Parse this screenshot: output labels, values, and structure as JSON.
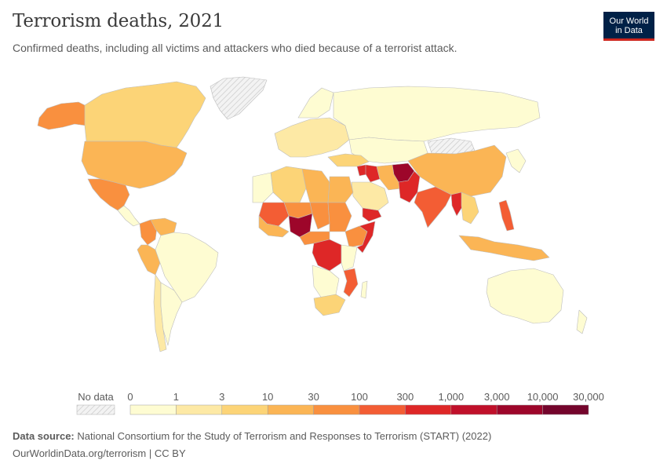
{
  "header": {
    "title": "Terrorism deaths, 2021",
    "subtitle": "Confirmed deaths, including all victims and attackers who died because of a terrorist attack."
  },
  "logo": {
    "line1": "Our World",
    "line2": "in Data",
    "bg": "#002147",
    "accent": "#ce261e"
  },
  "legend": {
    "no_data_label": "No data",
    "bins": [
      "0",
      "1",
      "3",
      "10",
      "30",
      "100",
      "300",
      "1,000",
      "3,000",
      "10,000",
      "30,000"
    ],
    "colors": [
      "#fefcd2",
      "#fde9a5",
      "#fcd477",
      "#fbb555",
      "#f9903f",
      "#f35d34",
      "#de2727",
      "#c0102a",
      "#9d062a",
      "#74052c"
    ]
  },
  "footer": {
    "source_label": "Data source:",
    "source_text": "National Consortium for the Study of Terrorism and Responses to Terrorism (START) (2022)",
    "url": "OurWorldinData.org/terrorism",
    "license": "| CC BY"
  },
  "regions": [
    {
      "name": "Canada",
      "level": 2
    },
    {
      "name": "Alaska",
      "level": 4
    },
    {
      "name": "United States",
      "level": 3
    },
    {
      "name": "Mexico",
      "level": 4
    },
    {
      "name": "Colombia",
      "level": 4
    },
    {
      "name": "Venezuela",
      "level": 3
    },
    {
      "name": "Peru",
      "level": 3
    },
    {
      "name": "Brazil",
      "level": 0
    },
    {
      "name": "Chile",
      "level": 1
    },
    {
      "name": "Argentina",
      "level": 0
    },
    {
      "name": "Greenland",
      "level": -1
    },
    {
      "name": "Russia",
      "level": 0
    },
    {
      "name": "Western Europe",
      "level": 1
    },
    {
      "name": "Iraq",
      "level": 6
    },
    {
      "name": "Syria",
      "level": 6
    },
    {
      "name": "Afghanistan",
      "level": 8
    },
    {
      "name": "Pakistan",
      "level": 6
    },
    {
      "name": "India",
      "level": 5
    },
    {
      "name": "Myanmar",
      "level": 6
    },
    {
      "name": "China",
      "level": 3
    },
    {
      "name": "Philippines",
      "level": 5
    },
    {
      "name": "Indonesia",
      "level": 3
    },
    {
      "name": "Australia",
      "level": 0
    },
    {
      "name": "Nigeria",
      "level": 8
    },
    {
      "name": "Mali",
      "level": 5
    },
    {
      "name": "Niger",
      "level": 4
    },
    {
      "name": "Algeria",
      "level": 2
    },
    {
      "name": "Libya",
      "level": 3
    },
    {
      "name": "Egypt",
      "level": 3
    },
    {
      "name": "Sudan",
      "level": 4
    },
    {
      "name": "Somalia",
      "level": 6
    },
    {
      "name": "Ethiopia",
      "level": 4
    },
    {
      "name": "DR Congo",
      "level": 6
    },
    {
      "name": "Mozambique",
      "level": 5
    },
    {
      "name": "South Africa",
      "level": 2
    },
    {
      "name": "Yemen",
      "level": 6
    },
    {
      "name": "Saudi Arabia",
      "level": 1
    }
  ]
}
